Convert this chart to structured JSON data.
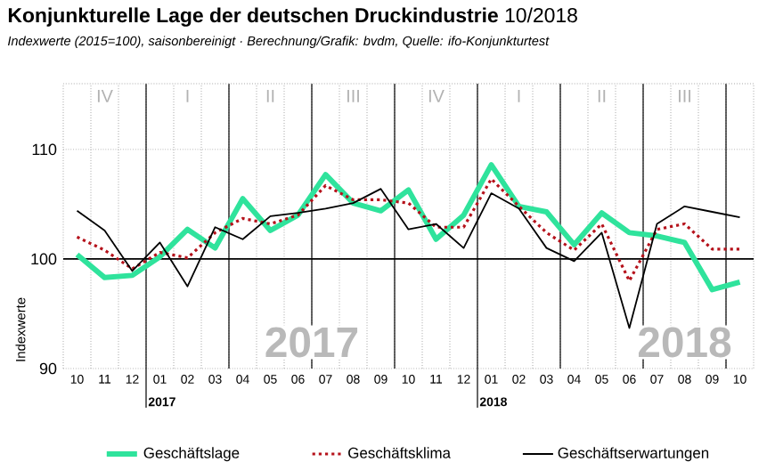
{
  "chart_data": {
    "type": "line",
    "title": "**Konjunkturelle Lage der deutschen Druckindustrie** 10/2018",
    "subtitle": "Indexwerte (2015=100), saisonbereinigt · Berechnung/Grafik: bvdm, Quelle: ifo-Konjunkturtest",
    "ylabel": "Indexwerte",
    "categories": [
      "10",
      "11",
      "12",
      "01",
      "02",
      "03",
      "04",
      "05",
      "06",
      "07",
      "08",
      "09",
      "10",
      "11",
      "12",
      "01",
      "02",
      "03",
      "04",
      "05",
      "06",
      "07",
      "08",
      "09",
      "10"
    ],
    "series": [
      {
        "name": "Geschäftslage",
        "color": "#2fe39c",
        "line_style": "solid",
        "values": [
          100.4,
          98.3,
          98.5,
          100.2,
          102.7,
          101.0,
          105.5,
          102.6,
          104.0,
          107.7,
          105.1,
          104.4,
          106.3,
          101.8,
          104.0,
          108.6,
          104.8,
          104.3,
          101.3,
          104.2,
          102.4,
          102.1,
          101.5,
          97.2,
          97.9
        ]
      },
      {
        "name": "Geschäftsklima",
        "color": "#b5121b",
        "line_style": "dotted",
        "values": [
          102.0,
          100.8,
          99.1,
          100.6,
          100.1,
          102.4,
          103.7,
          103.2,
          104.0,
          106.7,
          105.4,
          105.4,
          105.1,
          102.9,
          102.9,
          107.3,
          104.8,
          102.4,
          100.8,
          103.2,
          98.0,
          102.7,
          103.2,
          100.9,
          100.9
        ]
      },
      {
        "name": "Geschäftserwartungen",
        "color": "#000000",
        "line_style": "solid",
        "values": [
          104.4,
          102.6,
          98.9,
          101.5,
          97.5,
          102.9,
          101.8,
          103.9,
          104.2,
          104.6,
          105.1,
          106.4,
          102.7,
          103.2,
          101.0,
          106.0,
          104.6,
          101.0,
          99.8,
          102.4,
          93.7,
          103.2,
          104.8,
          104.3,
          103.8
        ]
      }
    ],
    "ylim": [
      90,
      116
    ],
    "yticks": [
      90,
      100,
      110
    ],
    "grid": true,
    "legend": "bottom",
    "ref_lines": [
      {
        "axis": "y",
        "value": 100,
        "color": "#000000"
      }
    ],
    "annotations": [
      "IV",
      "I",
      "II",
      "III",
      "IV",
      "I",
      "II",
      "III",
      "2017",
      "2018",
      "2017",
      "2018"
    ]
  }
}
